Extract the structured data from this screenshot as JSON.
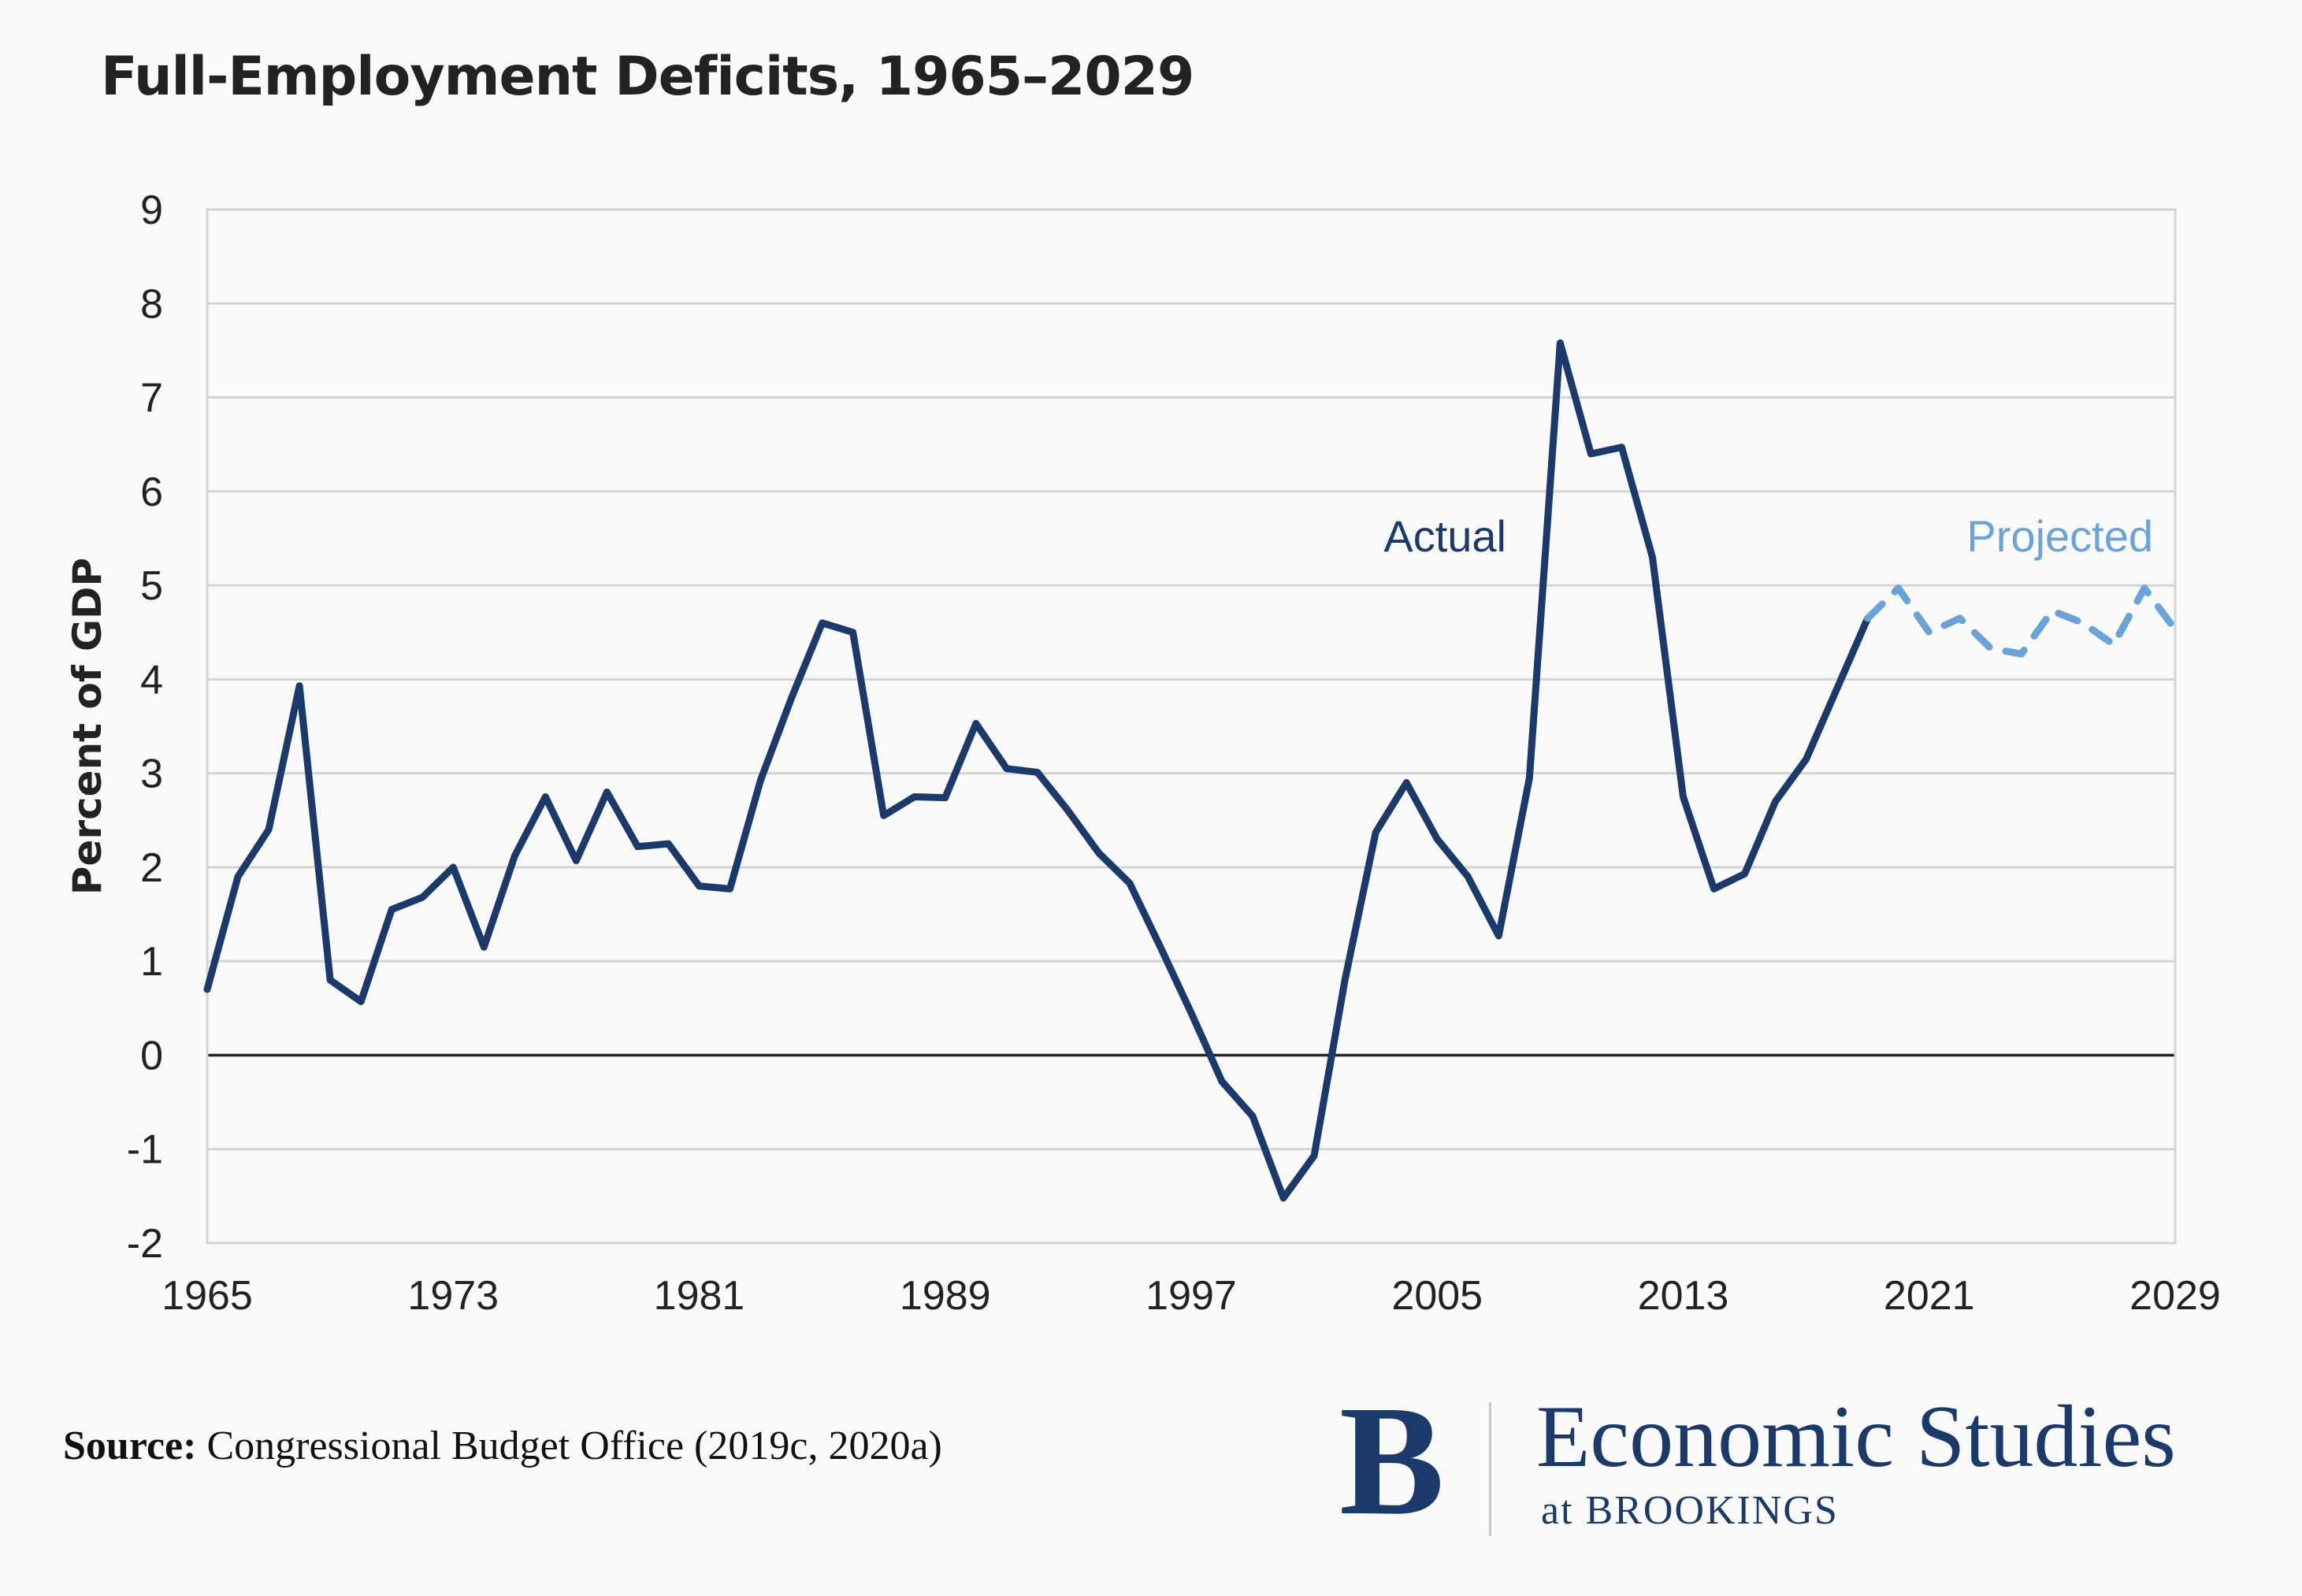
{
  "title": "Full-Employment Deficits, 1965–2029",
  "source_label": "Source:",
  "source_text": " Congressional Budget Office (2019c, 2020a)",
  "logo": {
    "letter": "B",
    "main": "Economic Studies",
    "sub": "at BROOKINGS"
  },
  "chart_data": {
    "type": "line",
    "title": "Full-Employment Deficits, 1965–2029",
    "xlabel": "",
    "ylabel": "Percent of GDP",
    "xlim": [
      1965,
      2029
    ],
    "ylim": [
      -2,
      9
    ],
    "xticks": [
      1965,
      1973,
      1981,
      1989,
      1997,
      2005,
      2013,
      2021,
      2029
    ],
    "yticks": [
      -2,
      -1,
      0,
      1,
      2,
      3,
      4,
      5,
      6,
      7,
      8,
      9
    ],
    "grid": true,
    "colors": {
      "actual": "#1b3a6b",
      "projected": "#6aa3d8",
      "zero_line": "#222222",
      "grid": "#d4d4d4"
    },
    "series": [
      {
        "name": "Actual",
        "style": "solid",
        "x": [
          1965,
          1966,
          1967,
          1968,
          1969,
          1970,
          1971,
          1972,
          1973,
          1974,
          1975,
          1976,
          1977,
          1978,
          1979,
          1980,
          1981,
          1982,
          1983,
          1984,
          1985,
          1986,
          1987,
          1988,
          1989,
          1990,
          1991,
          1992,
          1993,
          1994,
          1995,
          1996,
          1997,
          1998,
          1999,
          2000,
          2001,
          2002,
          2003,
          2004,
          2005,
          2006,
          2007,
          2008,
          2009,
          2010,
          2011,
          2012,
          2013,
          2014,
          2015,
          2016,
          2017,
          2018,
          2019
        ],
        "values": [
          0.7,
          1.9,
          2.4,
          3.93,
          0.8,
          0.57,
          1.55,
          1.68,
          2.0,
          1.15,
          2.12,
          2.75,
          2.07,
          2.8,
          2.22,
          2.25,
          1.8,
          1.77,
          2.93,
          3.8,
          4.6,
          4.5,
          2.55,
          2.75,
          2.74,
          3.53,
          3.05,
          3.01,
          2.6,
          2.15,
          1.83,
          1.15,
          0.45,
          -0.28,
          -0.65,
          -1.52,
          -1.07,
          0.8,
          2.37,
          2.9,
          2.3,
          1.9,
          1.27,
          2.95,
          7.58,
          6.4,
          6.47,
          5.3,
          2.75,
          1.77,
          1.93,
          2.7,
          3.15,
          3.9,
          4.65
        ]
      },
      {
        "name": "Projected",
        "style": "dashed",
        "x": [
          2019,
          2020,
          2021,
          2022,
          2023,
          2024,
          2025,
          2026,
          2027,
          2028,
          2029
        ],
        "values": [
          4.65,
          4.97,
          4.5,
          4.65,
          4.33,
          4.27,
          4.73,
          4.6,
          4.37,
          4.97,
          4.53
        ]
      }
    ],
    "annotations": [
      {
        "text": "Actual",
        "x": 2006,
        "y": 5.5
      },
      {
        "text": "Projected",
        "x": 2025,
        "y": 5.5
      }
    ]
  }
}
